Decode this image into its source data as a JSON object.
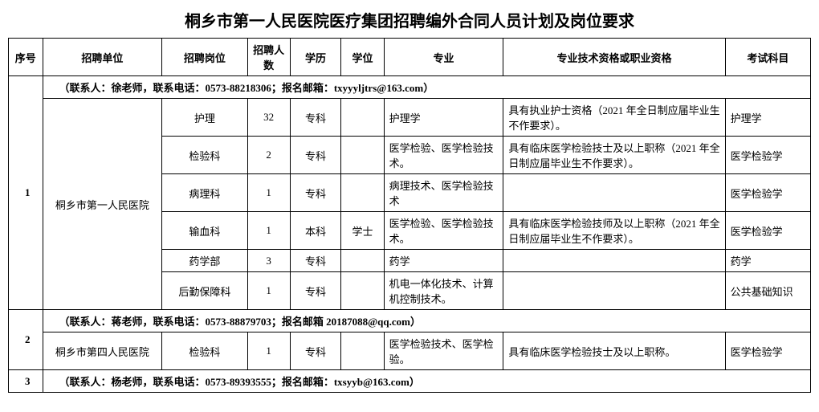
{
  "title": "桐乡市第一人民医院医疗集团招聘编外合同人员计划及岗位要求",
  "headers": {
    "seq": "序号",
    "unit": "招聘单位",
    "post": "招聘岗位",
    "num": "招聘人数",
    "edu": "学历",
    "degree": "学位",
    "major": "专业",
    "qual": "专业技术资格或职业资格",
    "exam": "考试科目"
  },
  "groups": [
    {
      "seq": "1",
      "contact": "（联系人：徐老师，联系电话：0573-88218306；报名邮箱：txyyyljtrs@163.com）",
      "unit": "桐乡市第一人民医院",
      "rows": [
        {
          "post": "护理",
          "num": "32",
          "edu": "专科",
          "degree": "",
          "major": "护理学",
          "qual": "具有执业护士资格（2021 年全日制应届毕业生不作要求）。",
          "exam": "护理学"
        },
        {
          "post": "检验科",
          "num": "2",
          "edu": "专科",
          "degree": "",
          "major": "医学检验、医学检验技术。",
          "qual": "具有临床医学检验技士及以上职称（2021 年全日制应届毕业生不作要求）。",
          "exam": "医学检验学"
        },
        {
          "post": "病理科",
          "num": "1",
          "edu": "专科",
          "degree": "",
          "major": "病理技术、医学检验技术",
          "qual": "",
          "exam": "医学检验学"
        },
        {
          "post": "输血科",
          "num": "1",
          "edu": "本科",
          "degree": "学士",
          "major": "医学检验、医学检验技术。",
          "qual": "具有临床医学检验技师及以上职称（2021 年全日制应届毕业生不作要求）。",
          "exam": "医学检验学"
        },
        {
          "post": "药学部",
          "num": "3",
          "edu": "专科",
          "degree": "",
          "major": "药学",
          "qual": "",
          "exam": "药学"
        },
        {
          "post": "后勤保障科",
          "num": "1",
          "edu": "专科",
          "degree": "",
          "major": "机电一体化技术、计算机控制技术。",
          "qual": "",
          "exam": "公共基础知识"
        }
      ]
    },
    {
      "seq": "2",
      "contact": "（联系人：蒋老师，联系电话：0573-88879703；报名邮箱 20187088@qq.com）",
      "unit": "桐乡市第四人民医院",
      "rows": [
        {
          "post": "检验科",
          "num": "1",
          "edu": "专科",
          "degree": "",
          "major": "医学检验技术、医学检验。",
          "qual": "具有临床医学检验技士及以上职称。",
          "exam": "医学检验学"
        }
      ]
    },
    {
      "seq": "3",
      "contact": "（联系人：杨老师，联系电话：0573-89393555；报名邮箱：txsyyb@163.com）",
      "unit": "",
      "rows": []
    }
  ],
  "style": {
    "title_fontsize": 20,
    "body_fontsize": 13,
    "border_color": "#000000",
    "background_color": "#ffffff",
    "text_color": "#000000"
  }
}
